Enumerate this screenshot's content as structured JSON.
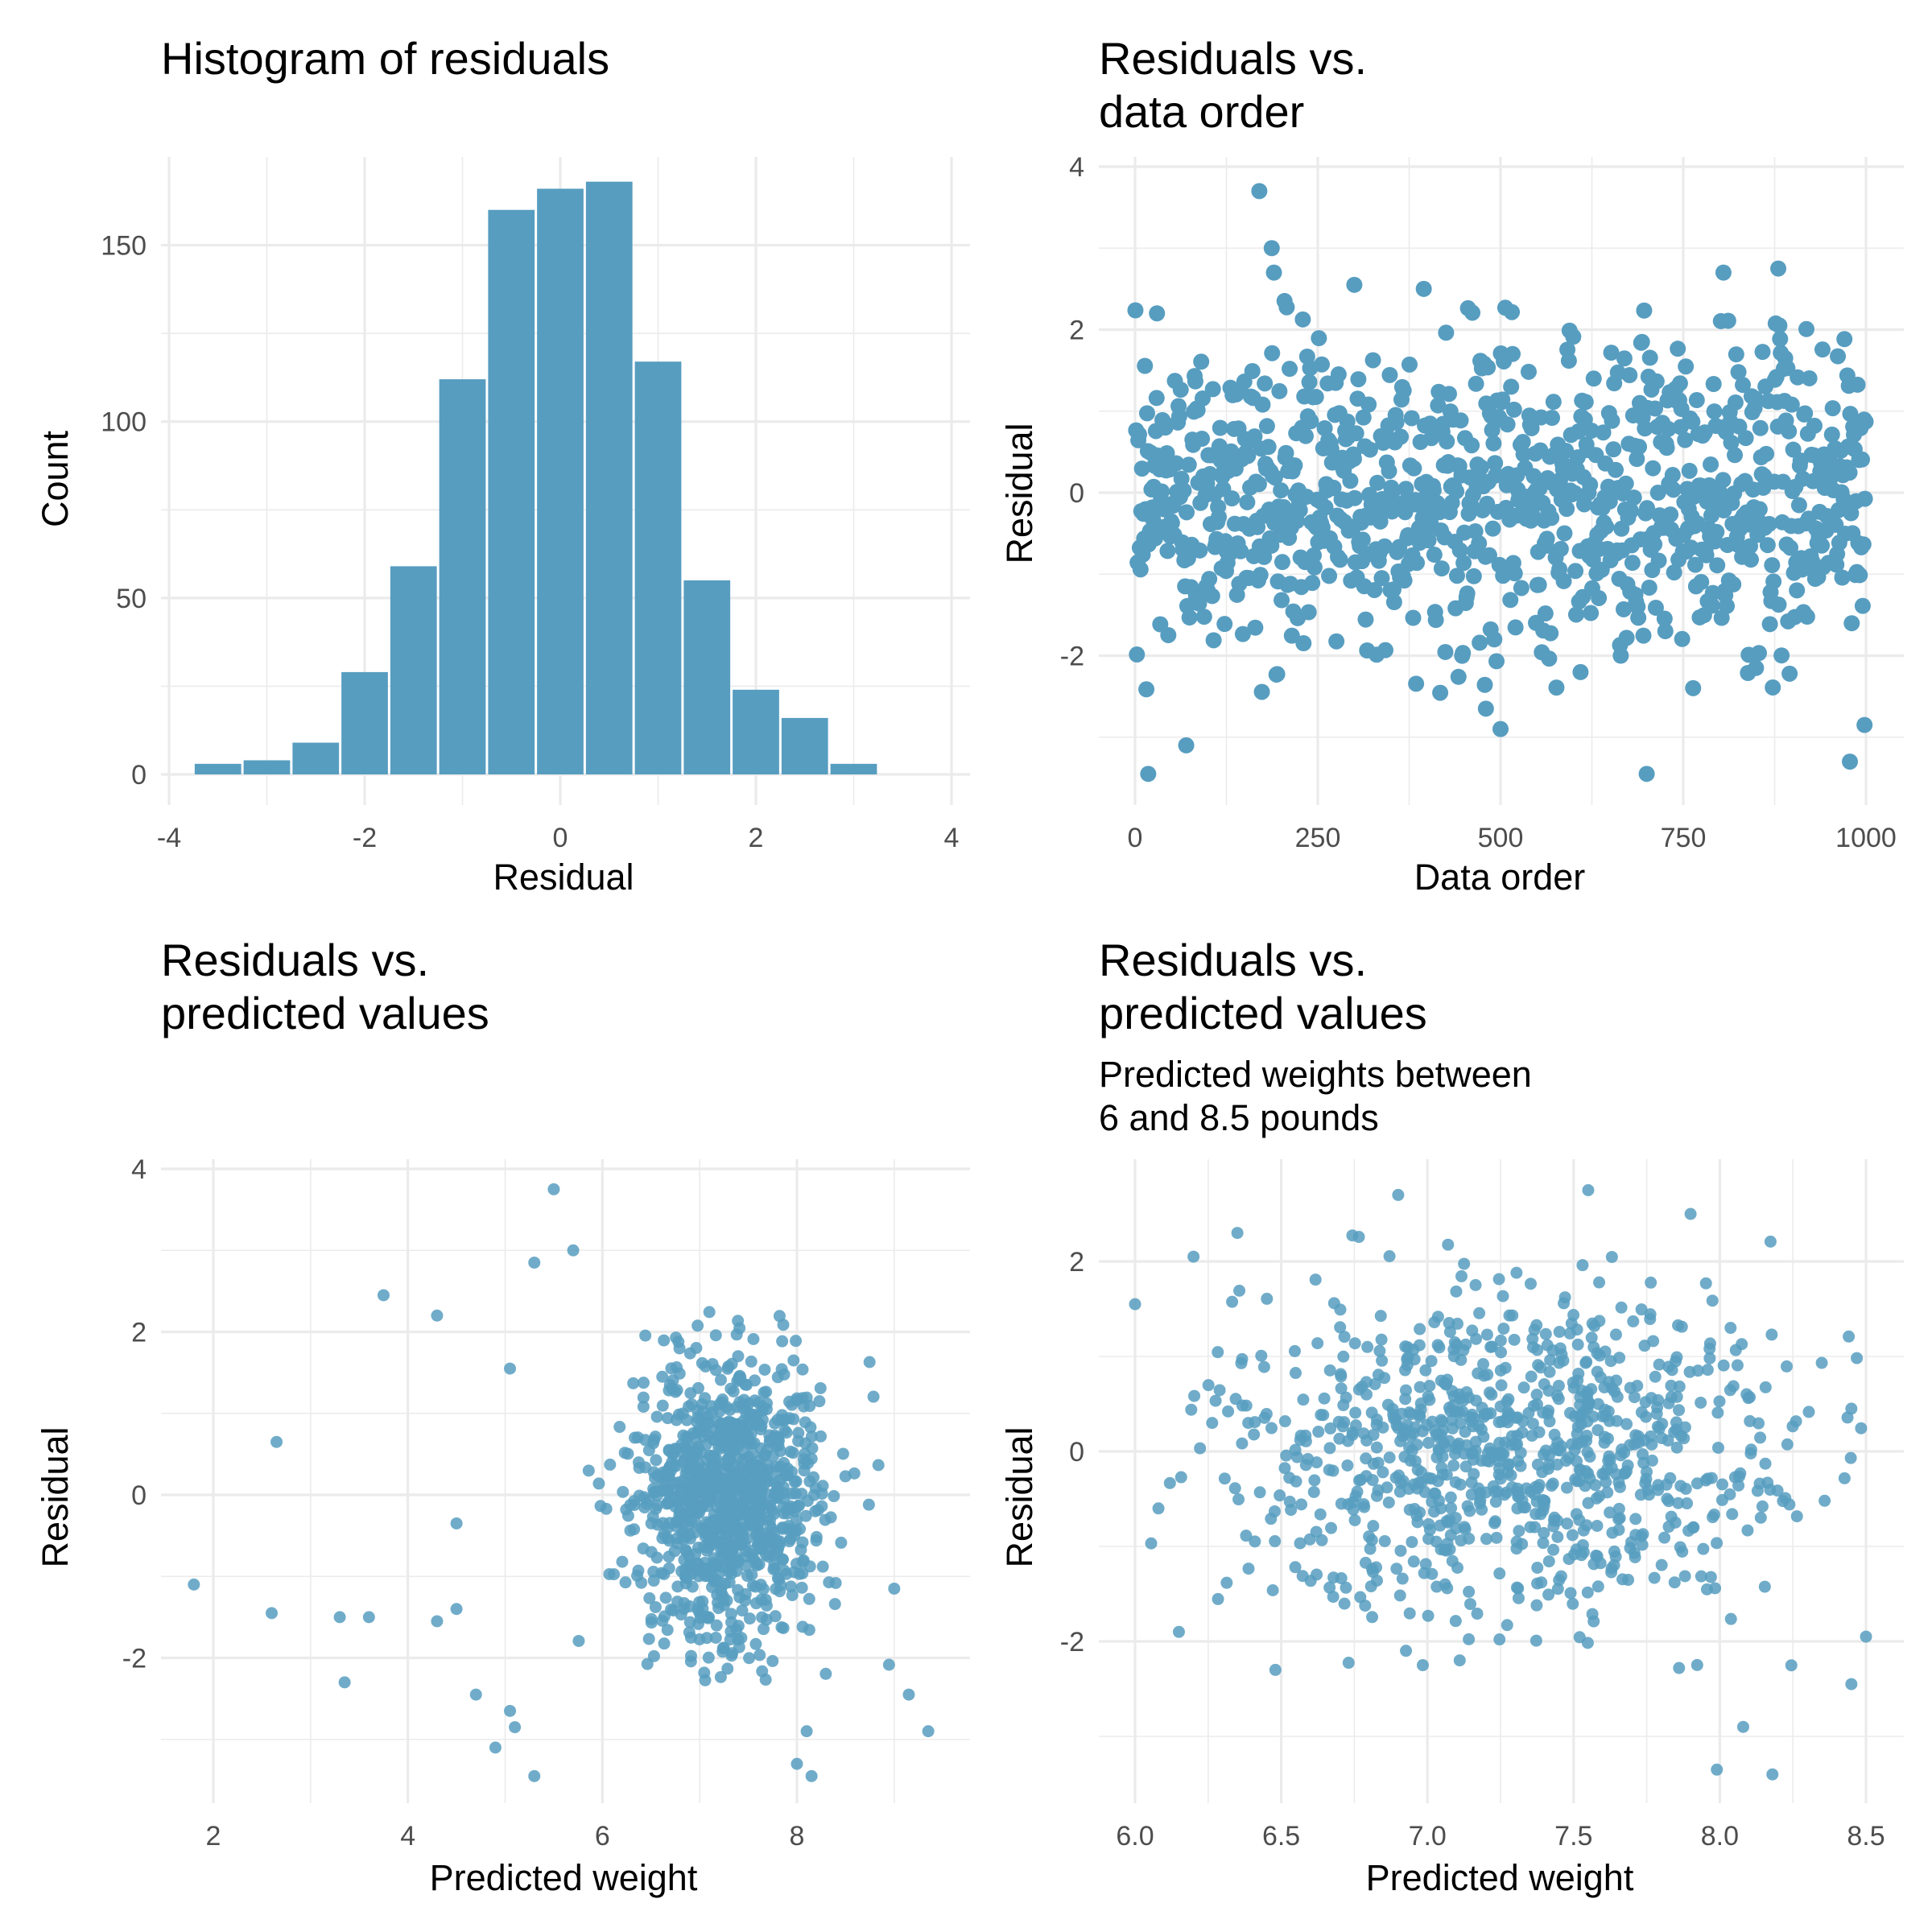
{
  "chart_data": [
    {
      "type": "bar",
      "title": "Histogram of residuals",
      "xlabel": "Residual",
      "ylabel": "Count",
      "xlim": [
        -4,
        4
      ],
      "ylim": [
        0,
        175
      ],
      "xticks": [
        "-4",
        "-2",
        "0",
        "2",
        "4"
      ],
      "yticks": [
        "0",
        "50",
        "100",
        "150"
      ],
      "bin_width": 0.5,
      "bin_centers": [
        -3.5,
        -3.0,
        -2.5,
        -2.0,
        -1.5,
        -1.0,
        -0.5,
        0.0,
        0.5,
        1.0,
        1.5,
        2.0,
        2.5,
        3.0,
        3.5
      ],
      "values": [
        3,
        4,
        9,
        29,
        59,
        112,
        160,
        166,
        168,
        117,
        55,
        24,
        16,
        3,
        0
      ],
      "color": "#579dc0",
      "grid": true
    },
    {
      "type": "scatter",
      "title_lines": [
        "Residuals vs.",
        "data order"
      ],
      "xlabel": "Data order",
      "ylabel": "Residual",
      "xlim": [
        0,
        1000
      ],
      "ylim": [
        -3.4,
        3.9
      ],
      "xticks": [
        "0",
        "250",
        "500",
        "750",
        "1000"
      ],
      "yticks": [
        "-2",
        "0",
        "2",
        "4"
      ],
      "n_points": 1000,
      "highlighted_points": [
        {
          "x": 18,
          "y": -3.45
        },
        {
          "x": 70,
          "y": -3.1
        },
        {
          "x": 170,
          "y": 3.7
        },
        {
          "x": 187,
          "y": 3.0
        },
        {
          "x": 190,
          "y": 2.7
        },
        {
          "x": 30,
          "y": 2.2
        },
        {
          "x": 300,
          "y": 2.55
        },
        {
          "x": 395,
          "y": 2.5
        },
        {
          "x": 480,
          "y": -2.65
        },
        {
          "x": 500,
          "y": -2.9
        },
        {
          "x": 700,
          "y": -3.45
        },
        {
          "x": 805,
          "y": 2.7
        },
        {
          "x": 880,
          "y": 2.75
        },
        {
          "x": 978,
          "y": -3.3
        },
        {
          "x": 998,
          "y": -2.85
        }
      ],
      "color": "#579dc0",
      "grid": true
    },
    {
      "type": "scatter",
      "title_lines": [
        "Residuals vs.",
        "predicted values"
      ],
      "xlabel": "Predicted weight",
      "ylabel": "Residual",
      "xlim": [
        1.6,
        9.6
      ],
      "ylim": [
        -3.4,
        3.9
      ],
      "xticks": [
        "2",
        "4",
        "6",
        "8"
      ],
      "yticks": [
        "-2",
        "0",
        "2",
        "4"
      ],
      "n_points": 1000,
      "highlighted_points": [
        {
          "x": 1.8,
          "y": -1.1
        },
        {
          "x": 2.65,
          "y": 0.65
        },
        {
          "x": 2.6,
          "y": -1.45
        },
        {
          "x": 3.3,
          "y": -1.5
        },
        {
          "x": 3.35,
          "y": -2.3
        },
        {
          "x": 3.6,
          "y": -1.5
        },
        {
          "x": 3.75,
          "y": 2.45
        },
        {
          "x": 4.3,
          "y": 2.2
        },
        {
          "x": 4.3,
          "y": -1.55
        },
        {
          "x": 4.5,
          "y": -1.4
        },
        {
          "x": 4.5,
          "y": -0.35
        },
        {
          "x": 4.7,
          "y": -2.45
        },
        {
          "x": 4.9,
          "y": -3.1
        },
        {
          "x": 5.05,
          "y": -2.65
        },
        {
          "x": 5.1,
          "y": -2.85
        },
        {
          "x": 5.3,
          "y": -3.45
        },
        {
          "x": 5.3,
          "y": 2.85
        },
        {
          "x": 5.5,
          "y": 3.75
        },
        {
          "x": 5.7,
          "y": 3.0
        },
        {
          "x": 5.05,
          "y": 1.55
        },
        {
          "x": 8.1,
          "y": -2.9
        },
        {
          "x": 8.0,
          "y": -3.3
        },
        {
          "x": 8.15,
          "y": -3.45
        },
        {
          "x": 9.35,
          "y": -2.9
        },
        {
          "x": 9.15,
          "y": -2.45
        },
        {
          "x": 9.0,
          "y": -1.15
        }
      ],
      "color": "#579dc0",
      "grid": true
    },
    {
      "type": "scatter",
      "title_lines": [
        "Residuals vs.",
        "predicted values"
      ],
      "subtitle_lines": [
        "Predicted weights between",
        "6 and 8.5 pounds"
      ],
      "xlabel": "Predicted weight",
      "ylabel": "Residual",
      "xlim": [
        5.98,
        8.52
      ],
      "ylim": [
        -3.4,
        2.9
      ],
      "xticks": [
        "6.0",
        "6.5",
        "7.0",
        "7.5",
        "8.0",
        "8.5"
      ],
      "yticks": [
        "-2",
        "0",
        "2"
      ],
      "n_points": 900,
      "highlighted_points": [
        {
          "x": 6.0,
          "y": 1.55
        },
        {
          "x": 6.2,
          "y": 2.05
        },
        {
          "x": 6.35,
          "y": 2.3
        },
        {
          "x": 6.9,
          "y": 2.7
        },
        {
          "x": 7.55,
          "y": 2.75
        },
        {
          "x": 7.9,
          "y": 2.5
        },
        {
          "x": 7.99,
          "y": -3.35
        },
        {
          "x": 8.08,
          "y": -2.9
        },
        {
          "x": 8.18,
          "y": -3.4
        },
        {
          "x": 8.45,
          "y": -2.45
        },
        {
          "x": 8.5,
          "y": -1.95
        },
        {
          "x": 8.45,
          "y": 0.45
        },
        {
          "x": 6.08,
          "y": -0.6
        },
        {
          "x": 6.15,
          "y": -1.9
        },
        {
          "x": 6.48,
          "y": -2.3
        }
      ],
      "color": "#579dc0",
      "grid": true
    }
  ]
}
